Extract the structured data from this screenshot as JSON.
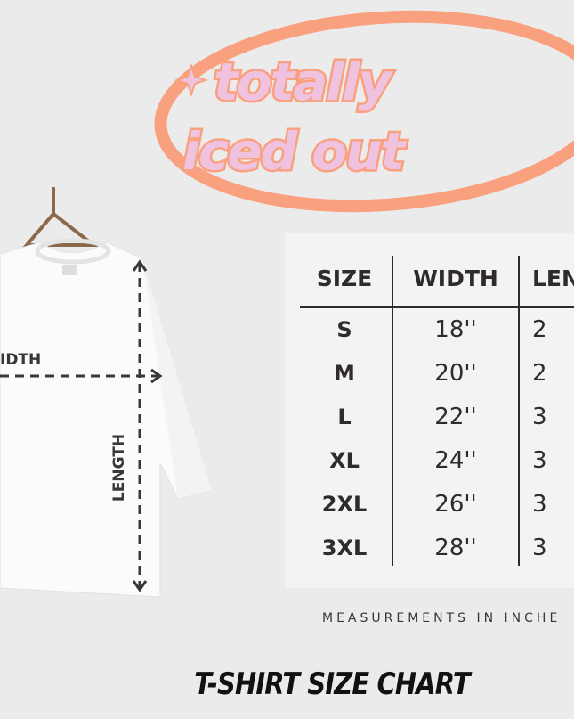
{
  "logo": {
    "text_line1": "totally",
    "text_line2": "iced out",
    "colors": {
      "ring": "#f9a07f",
      "letters": "#efc3df"
    }
  },
  "shirt": {
    "width_label": "IDTH",
    "length_label": "LENGTH"
  },
  "table": {
    "headers": [
      "SIZE",
      "WIDTH",
      "LEN"
    ],
    "rows": [
      {
        "size": "S",
        "width": "18''",
        "length": "2"
      },
      {
        "size": "M",
        "width": "20''",
        "length": "2"
      },
      {
        "size": "L",
        "width": "22''",
        "length": "3"
      },
      {
        "size": "XL",
        "width": "24''",
        "length": "3"
      },
      {
        "size": "2XL",
        "width": "26''",
        "length": "3"
      },
      {
        "size": "3XL",
        "width": "28''",
        "length": "3"
      }
    ]
  },
  "note": "MEASUREMENTS IN INCHE",
  "title": "T-SHIRT SIZE CHART"
}
